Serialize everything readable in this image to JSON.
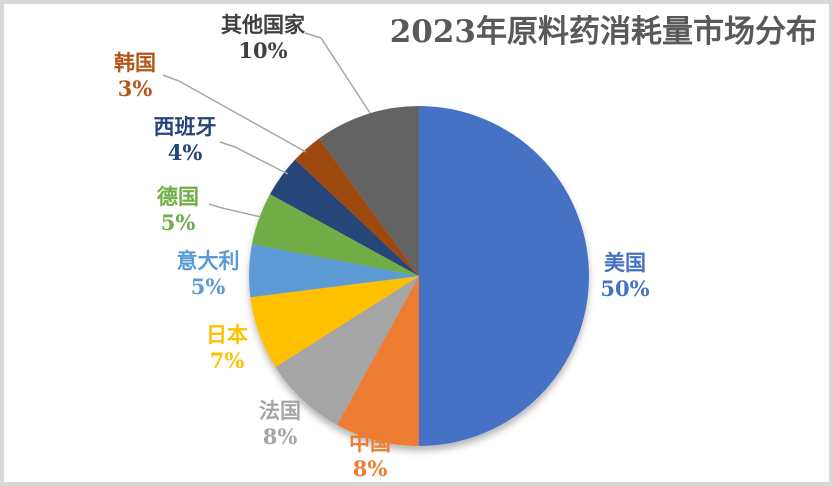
{
  "page": {
    "background_color": "#FFFFFF",
    "border_color": "#D8D8D8"
  },
  "chart_data": {
    "type": "pie",
    "title": "2023年原料药消耗量市场分布",
    "title_color": "#595959",
    "start_angle_deg": 0,
    "direction": "clockwise",
    "legend": "none",
    "data_labels": "category name and percent outside the pie",
    "leader_line_color": "#A6A6A6",
    "slices": [
      {
        "label": "美国",
        "value": 50,
        "percent_label": "50%",
        "color": "#4472C4",
        "label_color": "#4472C4"
      },
      {
        "label": "中国",
        "value": 8,
        "percent_label": "8%",
        "color": "#ED7D31",
        "label_color": "#ED7D31"
      },
      {
        "label": "法国",
        "value": 8,
        "percent_label": "8%",
        "color": "#A5A5A5",
        "label_color": "#A6A6A6"
      },
      {
        "label": "日本",
        "value": 7,
        "percent_label": "7%",
        "color": "#FFC000",
        "label_color": "#FFC000"
      },
      {
        "label": "意大利",
        "value": 5,
        "percent_label": "5%",
        "color": "#5B9BD5",
        "label_color": "#5B9BD5"
      },
      {
        "label": "德国",
        "value": 5,
        "percent_label": "5%",
        "color": "#70AD47",
        "label_color": "#70AD47"
      },
      {
        "label": "西班牙",
        "value": 4,
        "percent_label": "4%",
        "color": "#264478",
        "label_color": "#264478"
      },
      {
        "label": "韩国",
        "value": 3,
        "percent_label": "3%",
        "color": "#9E480E",
        "label_color": "#B4561B"
      },
      {
        "label": "其他国家",
        "value": 10,
        "percent_label": "10%",
        "color": "#636363",
        "label_color": "#404040"
      }
    ]
  }
}
